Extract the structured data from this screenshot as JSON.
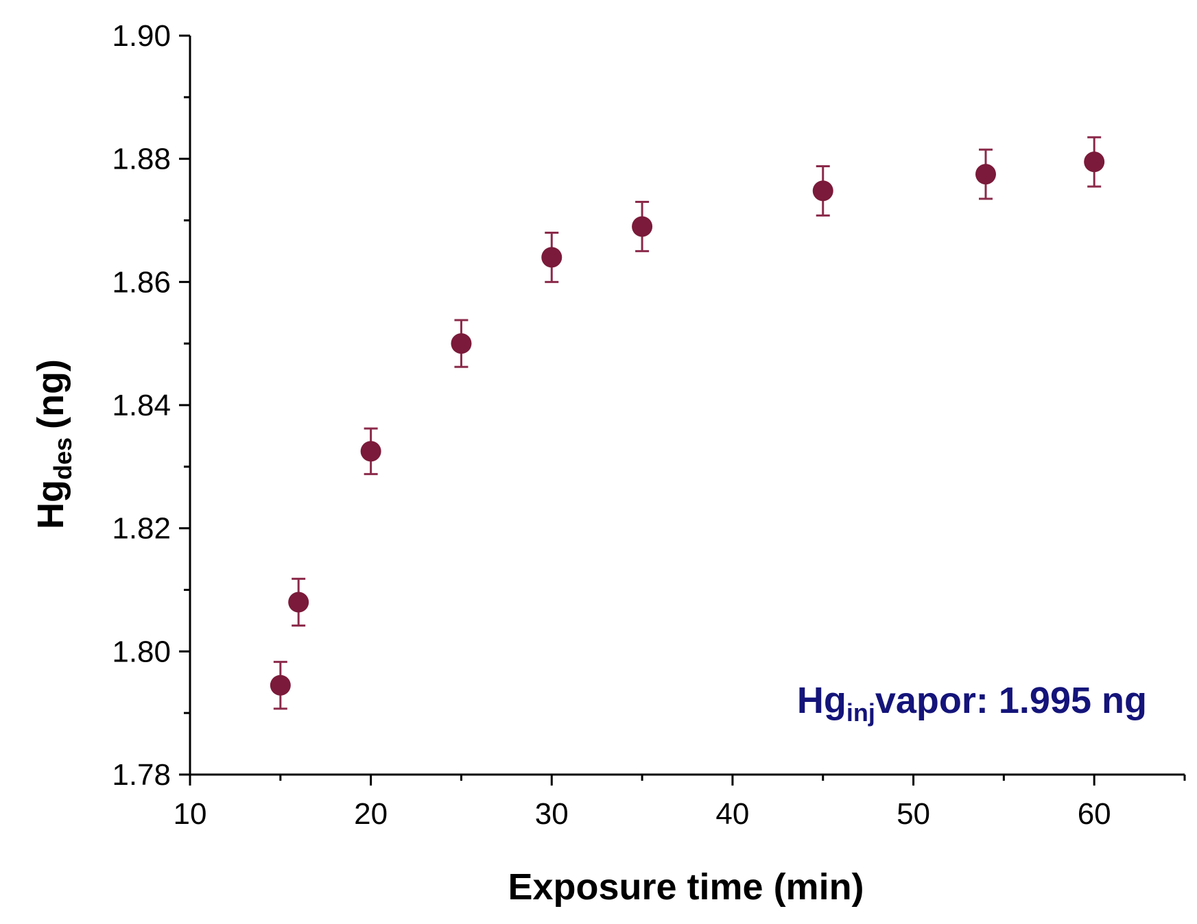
{
  "colors": {
    "marker": "#7b1a3a",
    "errorbar": "#8b2a4a",
    "axis": "#000000",
    "annotation": "#14147a"
  },
  "chart_data": {
    "type": "scatter",
    "title": "",
    "xlabel": "Exposure time (min)",
    "ylabel": {
      "main": "Hg",
      "sub": "des",
      "unit": "(ng)"
    },
    "xlim": [
      10,
      65
    ],
    "ylim": [
      1.78,
      1.9
    ],
    "x_ticks": [
      10,
      20,
      30,
      40,
      50,
      60
    ],
    "x_tick_labels": [
      "10",
      "20",
      "30",
      "40",
      "50",
      "60"
    ],
    "y_ticks": [
      1.78,
      1.8,
      1.82,
      1.84,
      1.86,
      1.88,
      1.9
    ],
    "y_tick_labels": [
      "1.78",
      "1.80",
      "1.82",
      "1.84",
      "1.86",
      "1.88",
      "1.90"
    ],
    "grid": false,
    "legend": "none",
    "series": [
      {
        "x": [
          15,
          16,
          20,
          25,
          30,
          35,
          45,
          54,
          60
        ],
        "y": [
          1.7945,
          1.808,
          1.8325,
          1.85,
          1.864,
          1.869,
          1.8748,
          1.8775,
          1.8795
        ],
        "error": [
          0.0038,
          0.0038,
          0.0037,
          0.0038,
          0.004,
          0.004,
          0.004,
          0.004,
          0.004
        ]
      }
    ],
    "annotation": {
      "main": "Hg",
      "sub": "inj",
      "rest": "vapor: 1.995 ng"
    }
  }
}
